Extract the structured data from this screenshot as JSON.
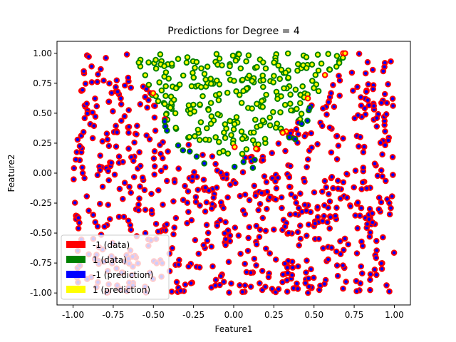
{
  "chart_data": {
    "type": "scatter",
    "title": "Predictions for Degree = 4",
    "xlabel": "Feature1",
    "ylabel": "Feature2",
    "xlim": [
      -1.1,
      1.1
    ],
    "ylim": [
      -1.1,
      1.1
    ],
    "xticks": [
      "-1.00",
      "-0.75",
      "-0.50",
      "-0.25",
      "0.00",
      "0.25",
      "0.50",
      "0.75",
      "1.00"
    ],
    "yticks": [
      "-1.00",
      "-0.75",
      "-0.50",
      "-0.25",
      "0.00",
      "0.25",
      "0.50",
      "0.75",
      "1.00"
    ],
    "grid": false,
    "legend_position": "lower-left",
    "legend": [
      {
        "label": "-1 (data)",
        "color": "#ff0000"
      },
      {
        "label": "1 (data)",
        "color": "#008000"
      },
      {
        "label": "-1 (prediction)",
        "color": "#0000ff"
      },
      {
        "label": "1 (prediction)",
        "color": "#ffff00"
      }
    ],
    "classification_region": {
      "description_of_region": "points predicted 1 lie above an arch-shaped boundary",
      "boundary_x": [
        -0.62,
        -0.5,
        -0.4,
        -0.3,
        -0.2,
        -0.1,
        0.0,
        0.1,
        0.2,
        0.3,
        0.4,
        0.5,
        0.6,
        0.7,
        0.8
      ],
      "boundary_y": [
        1.0,
        0.62,
        0.42,
        0.28,
        0.2,
        0.14,
        0.12,
        0.14,
        0.2,
        0.28,
        0.42,
        0.62,
        0.82,
        0.98,
        1.05
      ]
    },
    "series": [
      {
        "name": "-1 (data), -1 (prediction)",
        "edge": "#ff0000",
        "fill": "#0000ff",
        "count": 720
      },
      {
        "name": "1 (data), 1 (prediction)",
        "edge": "#008000",
        "fill": "#ffff00",
        "count": 260
      },
      {
        "name": "1 (data), -1 (prediction)",
        "edge": "#008000",
        "fill": "#0000ff",
        "count": 18
      },
      {
        "name": "-1 (data), 1 (prediction)",
        "edge": "#ff0000",
        "fill": "#ffff00",
        "count": 10
      }
    ]
  }
}
